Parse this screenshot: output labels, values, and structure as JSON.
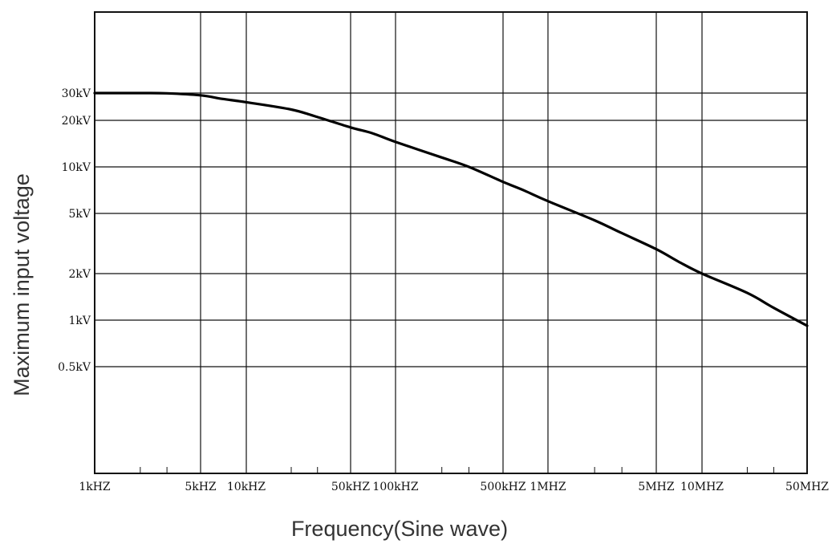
{
  "chart_data": {
    "type": "line",
    "title": "",
    "xlabel": "Frequency(Sine wave)",
    "ylabel": "Maximum input voltage",
    "x_scale": "log",
    "y_scale": "log",
    "grid": true,
    "legend": "none",
    "x_ticks": [
      {
        "value": 1000,
        "label": "1kHZ"
      },
      {
        "value": 5000,
        "label": "5kHZ"
      },
      {
        "value": 10000,
        "label": "10kHZ"
      },
      {
        "value": 50000,
        "label": "50kHZ"
      },
      {
        "value": 100000,
        "label": "100kHZ"
      },
      {
        "value": 500000,
        "label": "500kHZ"
      },
      {
        "value": 1000000,
        "label": "1MHZ"
      },
      {
        "value": 5000000,
        "label": "5MHZ"
      },
      {
        "value": 10000000,
        "label": "10MHZ"
      },
      {
        "value": 50000000,
        "label": "50MHZ"
      }
    ],
    "y_ticks": [
      {
        "value": 30,
        "label": "30kV"
      },
      {
        "value": 20,
        "label": "20kV"
      },
      {
        "value": 10,
        "label": "10kV"
      },
      {
        "value": 5,
        "label": "5kV"
      },
      {
        "value": 2,
        "label": "2kV"
      },
      {
        "value": 1,
        "label": "1kV"
      },
      {
        "value": 0.5,
        "label": "0.5kV"
      }
    ],
    "y_unit": "kV",
    "series": [
      {
        "x": [
          1000,
          2000,
          3000,
          5000,
          7000,
          10000,
          20000,
          30000,
          50000,
          70000,
          100000,
          200000,
          300000,
          500000,
          700000,
          1000000,
          2000000,
          3000000,
          5000000,
          7000000,
          10000000,
          20000000,
          30000000,
          50000000
        ],
        "y": [
          30,
          30,
          29.9,
          29,
          27.5,
          26.2,
          23.5,
          21,
          18,
          16.5,
          14.5,
          11.5,
          10,
          8,
          7,
          6,
          4.5,
          3.7,
          2.9,
          2.4,
          2,
          1.5,
          1.2,
          0.92
        ]
      }
    ]
  }
}
